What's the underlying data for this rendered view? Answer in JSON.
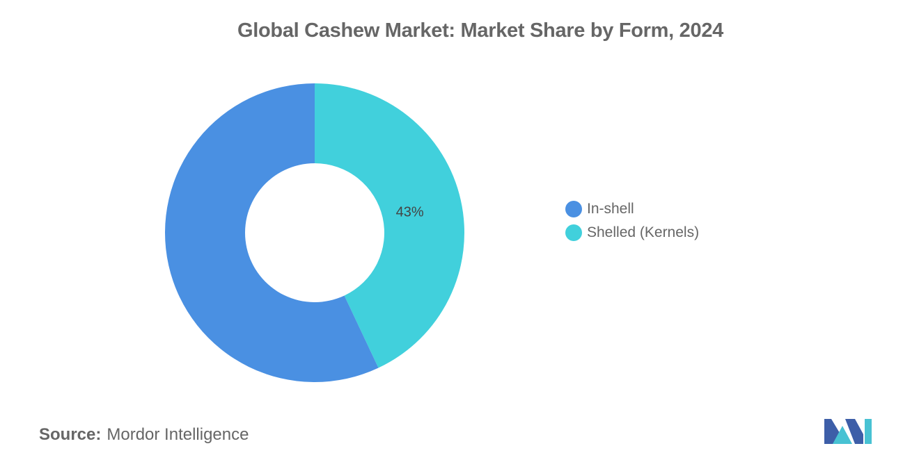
{
  "chart_data": {
    "type": "pie",
    "variant": "donut",
    "title": "Global Cashew Market: Market Share by Form, 2024",
    "categories": [
      "In-shell",
      "Shelled (Kernels)"
    ],
    "values": [
      57,
      43
    ],
    "data_labels": [
      "",
      "43%"
    ],
    "colors": [
      "#4a90e2",
      "#41d0dc"
    ],
    "legend_position": "right"
  },
  "source": {
    "label": "Source:",
    "value": "Mordor Intelligence"
  },
  "logo": {
    "icon": "mordor-intelligence-logo-icon",
    "colors": [
      "#3d5ea8",
      "#48c2d3"
    ]
  }
}
